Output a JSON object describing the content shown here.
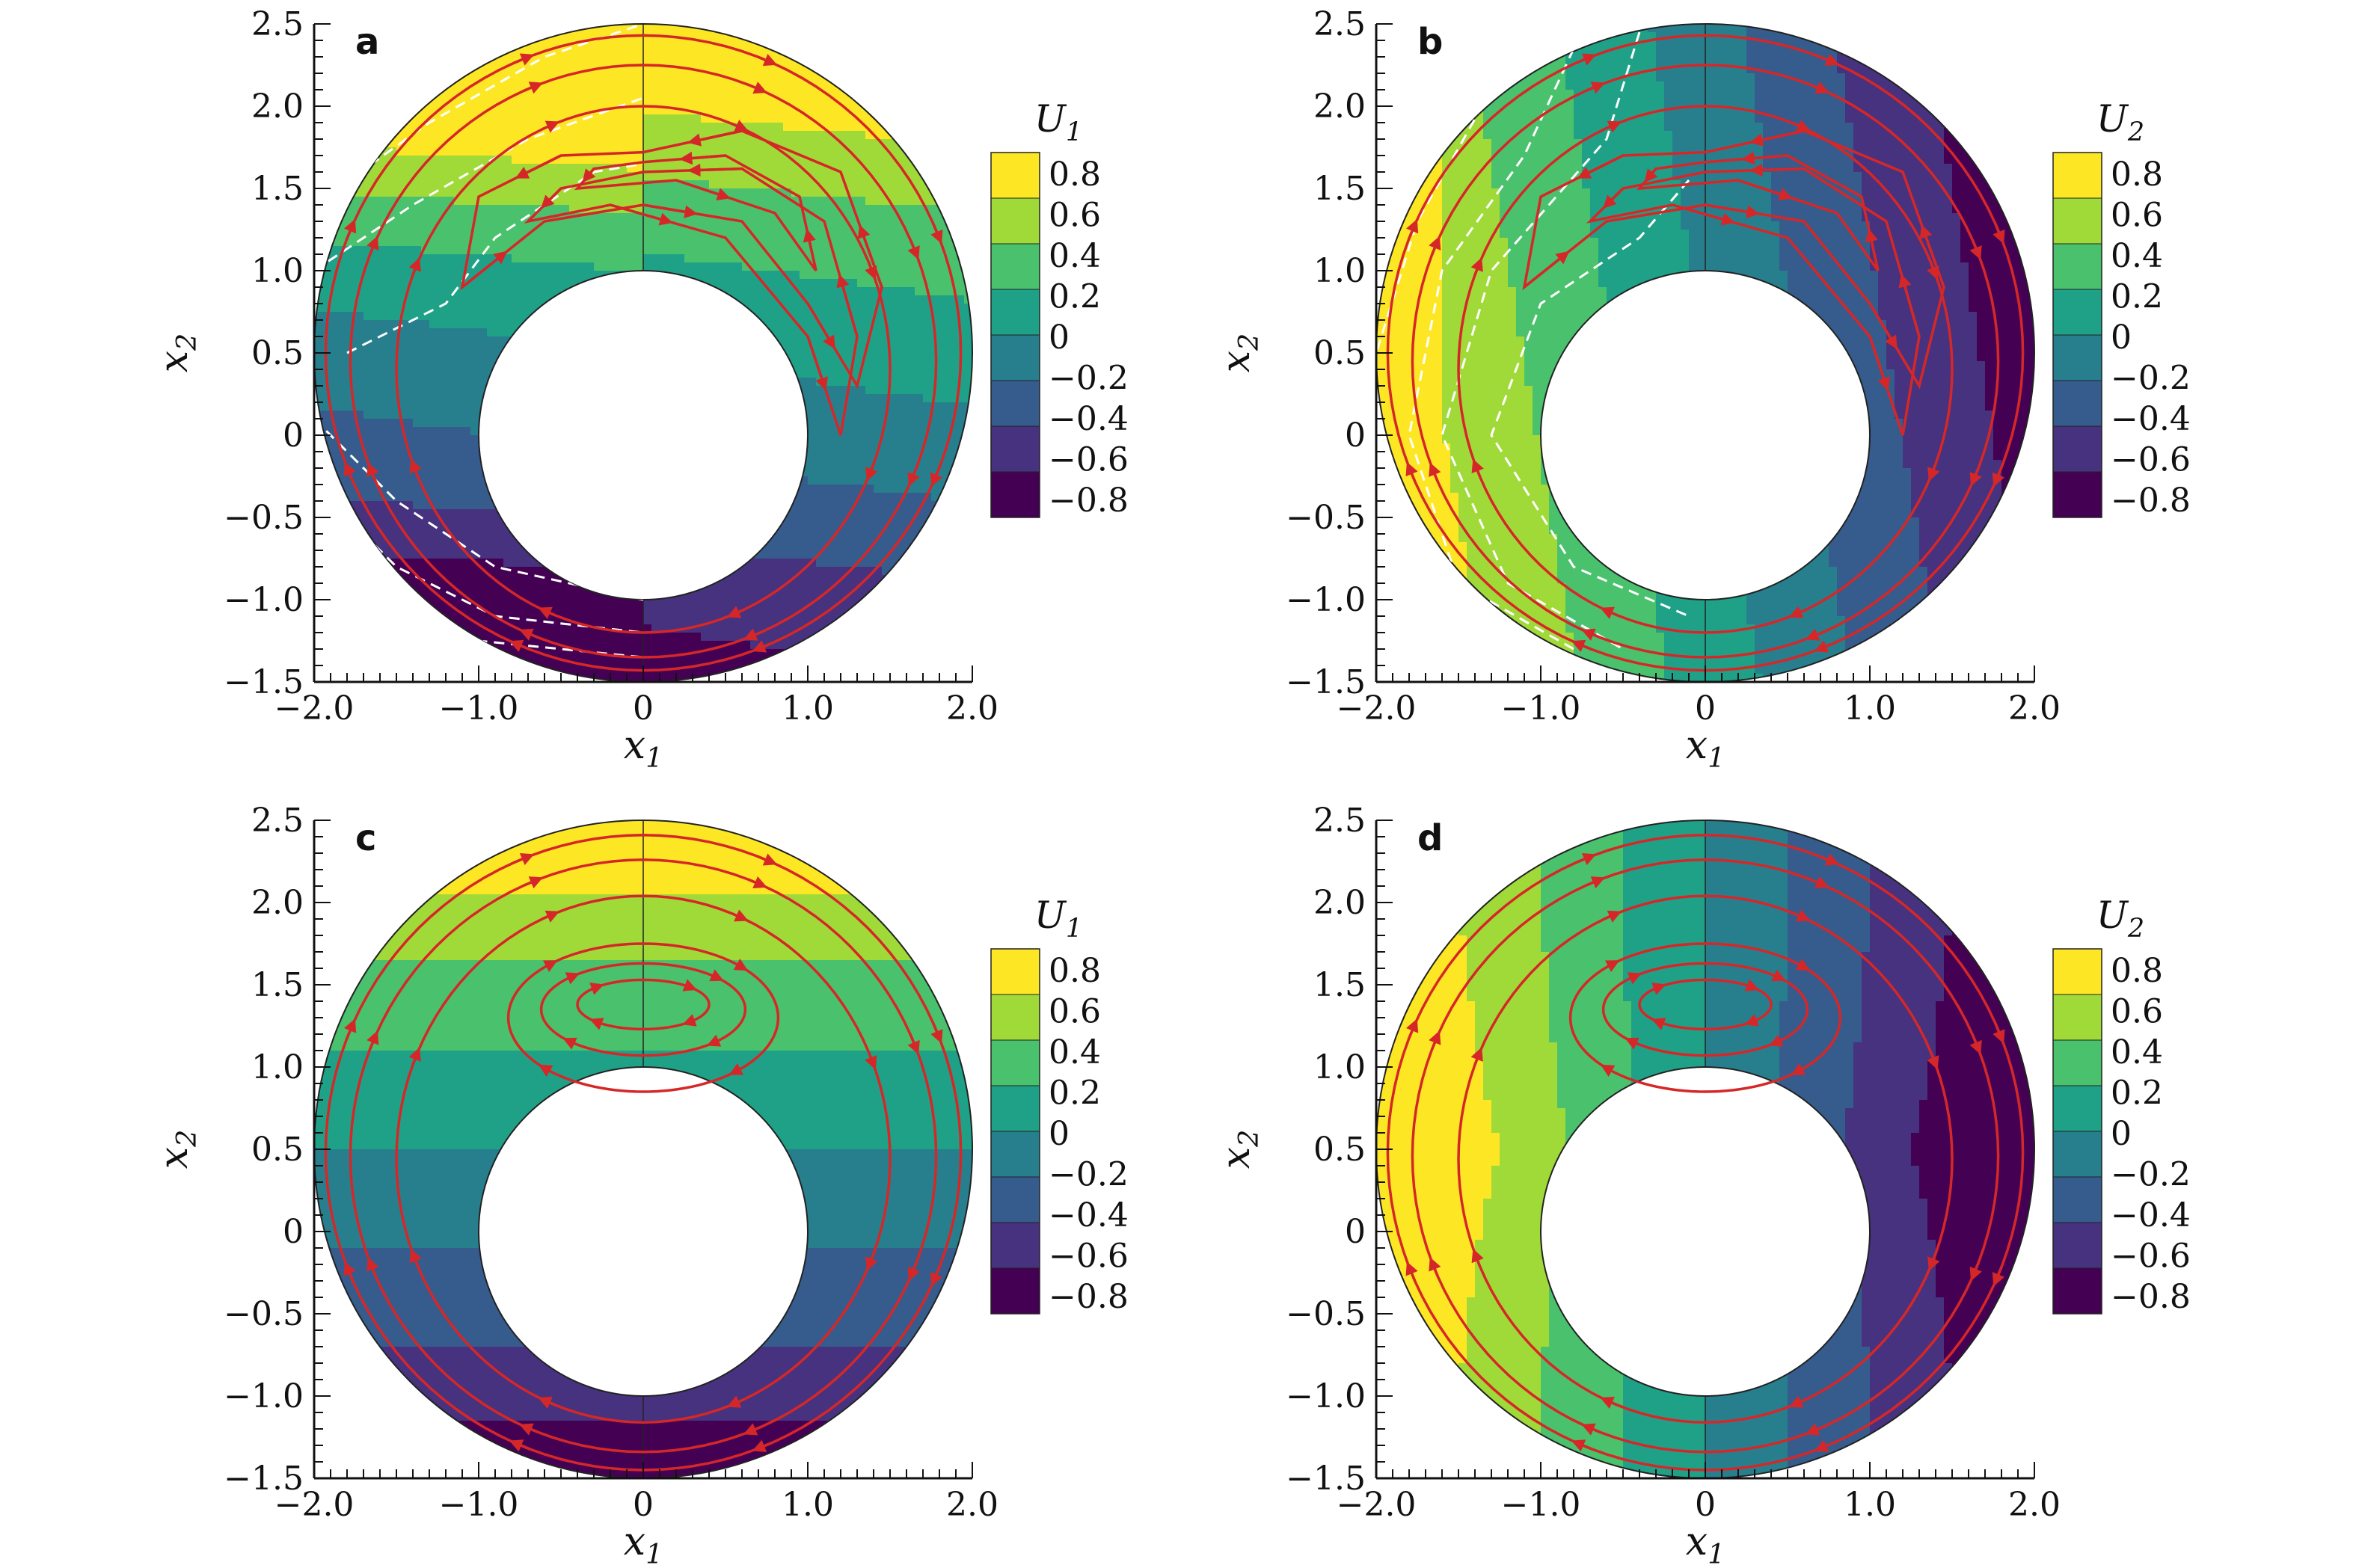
{
  "figure": {
    "colormap": [
      "#440154",
      "#46327e",
      "#365c8d",
      "#277f8e",
      "#1fa187",
      "#4ac16d",
      "#a0da39",
      "#fde725"
    ],
    "streamline_color": "#d62728",
    "zero_contour_color": "#ffffff",
    "background": "#ffffff"
  },
  "chart_data": [
    {
      "panel": "a",
      "type": "heatmap",
      "variable": "U_1",
      "colorbar_title": "U",
      "colorbar_sub": "1",
      "xlabel": "x",
      "xlabel_sub": "1",
      "ylabel": "x",
      "ylabel_sub": "2",
      "xlim": [
        -2.0,
        2.0
      ],
      "ylim": [
        -1.5,
        2.5
      ],
      "xticks": [
        "−2.0",
        "−1.0",
        "0",
        "1.0",
        "2.0"
      ],
      "yticks": [
        "−1.5",
        "−1.0",
        "−0.5",
        "0",
        "0.5",
        "1.0",
        "1.5",
        "2.0",
        "2.5"
      ],
      "colorbar_levels": [
        "0.8",
        "0.6",
        "0.4",
        "0.2",
        "0",
        "−0.2",
        "−0.4",
        "−0.6",
        "−0.8"
      ],
      "domain": {
        "outer_center": [
          0,
          0.5
        ],
        "outer_radius": 2.0,
        "inner_center": [
          0,
          0
        ],
        "inner_radius": 1.0
      },
      "field_model": "U1-asym",
      "streamlines": "asymmetric",
      "zero_contours": true
    },
    {
      "panel": "b",
      "type": "heatmap",
      "variable": "U_2",
      "colorbar_title": "U",
      "colorbar_sub": "2",
      "xlabel": "x",
      "xlabel_sub": "1",
      "ylabel": "x",
      "ylabel_sub": "2",
      "xlim": [
        -2.0,
        2.0
      ],
      "ylim": [
        -1.5,
        2.5
      ],
      "xticks": [
        "−2.0",
        "−1.0",
        "0",
        "1.0",
        "2.0"
      ],
      "yticks": [
        "−1.5",
        "−1.0",
        "−0.5",
        "0",
        "0.5",
        "1.0",
        "1.5",
        "2.0",
        "2.5"
      ],
      "colorbar_levels": [
        "0.8",
        "0.6",
        "0.4",
        "0.2",
        "0",
        "−0.2",
        "−0.4",
        "−0.6",
        "−0.8"
      ],
      "domain": {
        "outer_center": [
          0,
          0.5
        ],
        "outer_radius": 2.0,
        "inner_center": [
          0,
          0
        ],
        "inner_radius": 1.0
      },
      "field_model": "U2-asym",
      "streamlines": "asymmetric",
      "zero_contours": true
    },
    {
      "panel": "c",
      "type": "heatmap",
      "variable": "U_1",
      "colorbar_title": "U",
      "colorbar_sub": "1",
      "xlabel": "x",
      "xlabel_sub": "1",
      "ylabel": "x",
      "ylabel_sub": "2",
      "xlim": [
        -2.0,
        2.0
      ],
      "ylim": [
        -1.5,
        2.5
      ],
      "xticks": [
        "−2.0",
        "−1.0",
        "0",
        "1.0",
        "2.0"
      ],
      "yticks": [
        "−1.5",
        "−1.0",
        "−0.5",
        "0",
        "0.5",
        "1.0",
        "1.5",
        "2.0",
        "2.5"
      ],
      "colorbar_levels": [
        "0.8",
        "0.6",
        "0.4",
        "0.2",
        "0",
        "−0.2",
        "−0.4",
        "−0.6",
        "−0.8"
      ],
      "domain": {
        "outer_center": [
          0,
          0.5
        ],
        "outer_radius": 2.0,
        "inner_center": [
          0,
          0
        ],
        "inner_radius": 1.0
      },
      "field_model": "U1-sym",
      "streamlines": "symmetric",
      "zero_contours": false
    },
    {
      "panel": "d",
      "type": "heatmap",
      "variable": "U_2",
      "colorbar_title": "U",
      "colorbar_sub": "2",
      "xlabel": "x",
      "xlabel_sub": "1",
      "ylabel": "x",
      "ylabel_sub": "2",
      "xlim": [
        -2.0,
        2.0
      ],
      "ylim": [
        -1.5,
        2.5
      ],
      "xticks": [
        "−2.0",
        "−1.0",
        "0",
        "1.0",
        "2.0"
      ],
      "yticks": [
        "−1.5",
        "−1.0",
        "−0.5",
        "0",
        "0.5",
        "1.0",
        "1.5",
        "2.0",
        "2.5"
      ],
      "colorbar_levels": [
        "0.8",
        "0.6",
        "0.4",
        "0.2",
        "0",
        "−0.2",
        "−0.4",
        "−0.6",
        "−0.8"
      ],
      "domain": {
        "outer_center": [
          0,
          0.5
        ],
        "outer_radius": 2.0,
        "inner_center": [
          0,
          0
        ],
        "inner_radius": 1.0
      },
      "field_model": "U2-sym",
      "streamlines": "symmetric",
      "zero_contours": false
    }
  ]
}
